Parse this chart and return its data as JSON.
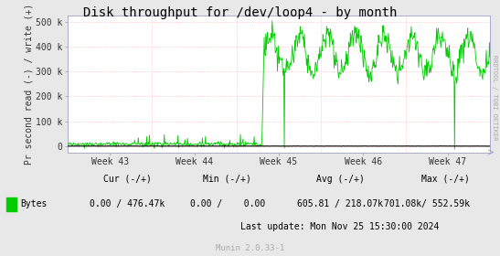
{
  "title": "Disk throughput for /dev/loop4 - by month",
  "ylabel": "Pr second read (-) / write (+)",
  "background_color": "#e8e8e8",
  "plot_bg_color": "#ffffff",
  "line_color_green": "#00cc00",
  "line_color_black": "#000000",
  "grid_color": "#ffaaaa",
  "ylim": [
    -25000,
    525000
  ],
  "yticks": [
    0,
    100000,
    200000,
    300000,
    400000,
    500000
  ],
  "ytick_labels": [
    "0",
    "100 k",
    "200 k",
    "300 k",
    "400 k",
    "500 k"
  ],
  "week_labels": [
    "Week 43",
    "Week 44",
    "Week 45",
    "Week 46",
    "Week 47"
  ],
  "footer_text": "Munin 2.0.33-1",
  "legend_label": "Bytes",
  "cur_label": "Cur (-/+)",
  "min_label": "Min (-/+)",
  "avg_label": "Avg (-/+)",
  "max_label": "Max (-/+)",
  "cur_val": "0.00 / 476.47k",
  "min_val": "0.00 /    0.00",
  "avg_val": "605.81 / 218.07k",
  "max_val": "701.08k/ 552.59k",
  "last_update": "Last update: Mon Nov 25 15:30:00 2024",
  "rrdtool_text": "RRDTOOL / TOBI OETIKER",
  "title_fontsize": 10,
  "axis_fontsize": 7,
  "tick_fontsize": 7,
  "footer_fontsize": 6.5
}
